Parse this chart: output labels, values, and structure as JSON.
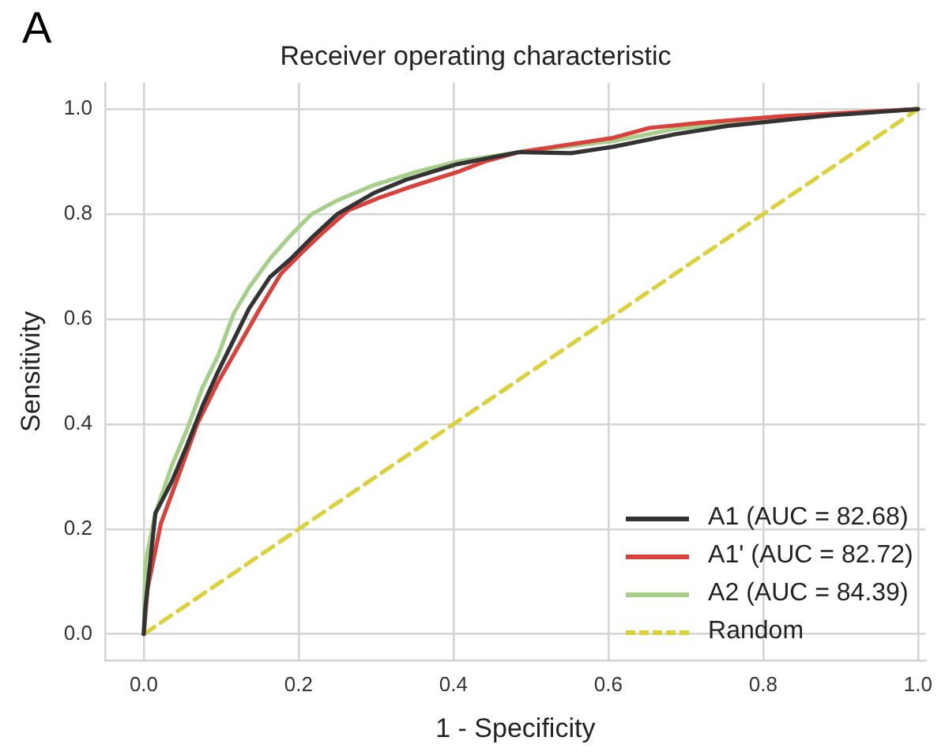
{
  "chart_data": {
    "type": "line",
    "title": "Receiver operating characteristic",
    "xlabel": "1 - Specificity",
    "ylabel": "Sensitivity",
    "annotations": [
      "A"
    ],
    "xlim": [
      -0.05,
      1.01
    ],
    "ylim": [
      -0.05,
      1.05
    ],
    "xticks": [
      {
        "value": 0,
        "label": "0.0"
      },
      0.2,
      0.4,
      0.6,
      0.8,
      {
        "value": 1,
        "label": "1.0"
      }
    ],
    "yticks": [
      {
        "value": 0,
        "label": "0.0"
      },
      0.2,
      0.4,
      0.6,
      0.8,
      {
        "value": 1,
        "label": "1.0"
      }
    ],
    "grid": true,
    "legend": "bottom right",
    "marker": "none",
    "series": [
      {
        "name": "A1 (AUC = 82.68)",
        "color": "#333333",
        "x": [
          0,
          0.002,
          0.015,
          0.036,
          0.056,
          0.076,
          0.096,
          0.116,
          0.136,
          0.163,
          0.19,
          0.217,
          0.25,
          0.297,
          0.338,
          0.405,
          0.485,
          0.552,
          0.606,
          0.686,
          0.754,
          0.821,
          0.888,
          1
        ],
        "values": [
          0,
          0.05,
          0.23,
          0.29,
          0.36,
          0.435,
          0.5,
          0.56,
          0.62,
          0.68,
          0.715,
          0.755,
          0.8,
          0.84,
          0.865,
          0.895,
          0.918,
          0.916,
          0.928,
          0.952,
          0.968,
          0.978,
          0.988,
          1
        ]
      },
      {
        "name": "A1' (AUC = 82.72)",
        "color": "#d9413b",
        "x": [
          0,
          0.005,
          0.022,
          0.042,
          0.069,
          0.096,
          0.123,
          0.15,
          0.177,
          0.203,
          0.23,
          0.264,
          0.304,
          0.351,
          0.405,
          0.44,
          0.485,
          0.606,
          0.653,
          0.72,
          0.821,
          1
        ],
        "values": [
          0,
          0.087,
          0.21,
          0.29,
          0.4,
          0.48,
          0.55,
          0.62,
          0.686,
          0.725,
          0.763,
          0.807,
          0.831,
          0.855,
          0.88,
          0.9,
          0.918,
          0.945,
          0.964,
          0.974,
          0.986,
          1
        ]
      },
      {
        "name": "A2 (AUC = 84.39)",
        "color": "#a6cf8a",
        "x": [
          0,
          0.002,
          0.015,
          0.036,
          0.056,
          0.076,
          0.096,
          0.116,
          0.136,
          0.163,
          0.19,
          0.217,
          0.25,
          0.297,
          0.351,
          0.405,
          0.485,
          0.606,
          0.686,
          0.821,
          1
        ],
        "values": [
          0,
          0.135,
          0.23,
          0.32,
          0.39,
          0.47,
          0.53,
          0.61,
          0.66,
          0.715,
          0.76,
          0.8,
          0.826,
          0.855,
          0.88,
          0.9,
          0.918,
          0.939,
          0.962,
          0.984,
          1
        ]
      },
      {
        "name": "Random",
        "color": "#dbd13a",
        "line_style": "dashed",
        "x": [
          0,
          1
        ],
        "values": [
          0,
          1
        ]
      }
    ]
  }
}
